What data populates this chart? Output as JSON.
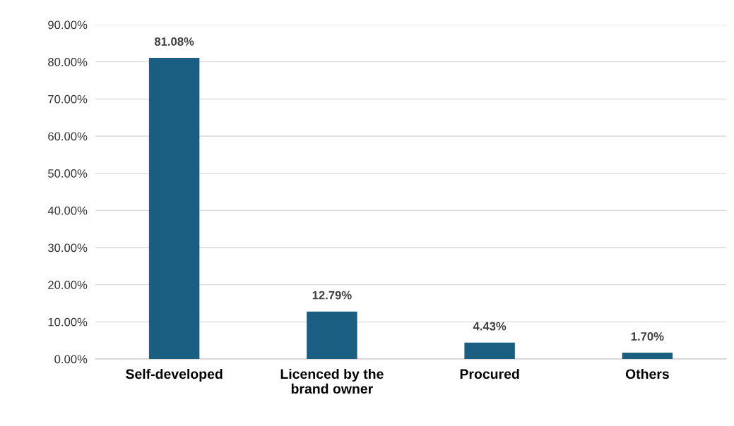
{
  "chart_data": {
    "type": "bar",
    "categories": [
      "Self-developed",
      "Licenced by the\nbrand owner",
      "Procured",
      "Others"
    ],
    "values": [
      81.08,
      12.79,
      4.43,
      1.7
    ],
    "value_labels": [
      "81.08%",
      "12.79%",
      "4.43%",
      "1.70%"
    ],
    "color": "#1a5f82",
    "ylim": [
      0,
      90
    ],
    "yticks": [
      {
        "value": 0,
        "label": "0.00%"
      },
      {
        "value": 10,
        "label": "10.00%"
      },
      {
        "value": 20,
        "label": "20.00%"
      },
      {
        "value": 30,
        "label": "30.00%"
      },
      {
        "value": 40,
        "label": "40.00%"
      },
      {
        "value": 50,
        "label": "50.00%"
      },
      {
        "value": 60,
        "label": "60.00%"
      },
      {
        "value": 70,
        "label": "70.00%"
      },
      {
        "value": 80,
        "label": "80.00%"
      },
      {
        "value": 90,
        "label": "90.00%"
      }
    ],
    "grid": "y",
    "legend": false
  }
}
